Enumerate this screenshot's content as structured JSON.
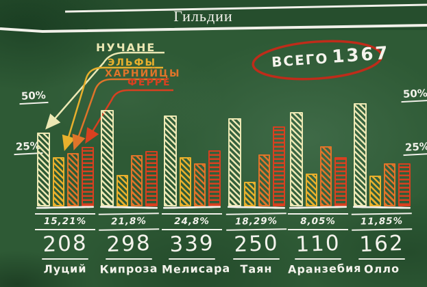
{
  "title": "Гильдии",
  "total": {
    "label": "ВСЕГО",
    "value": "1367"
  },
  "axis": {
    "left": [
      {
        "label": "50%"
      },
      {
        "label": "25%"
      }
    ],
    "right": [
      {
        "label": "50%"
      },
      {
        "label": "25%"
      }
    ]
  },
  "legend": [
    {
      "label": "НУЧАНЕ",
      "color": "#ece8b4"
    },
    {
      "label": "ЭЛЬФЫ",
      "color": "#e9b02d"
    },
    {
      "label": "ХАРНИЙЦЫ",
      "color": "#e0742a"
    },
    {
      "label": "ФЕРРЕ",
      "color": "#d84020"
    }
  ],
  "colors": {
    "board_green": "#2e5a35",
    "chalk_white": "#f2f1ea",
    "circle_red": "#bf2c1a"
  },
  "chart_data": {
    "type": "bar",
    "grouped": true,
    "title": "Гильдии",
    "categories": [
      "Луций",
      "Кипроза",
      "Мелисара",
      "Таян",
      "Аранзебия",
      "Олло"
    ],
    "share_percent": [
      "15,21%",
      "21,8%",
      "24,8%",
      "18,29%",
      "8,05%",
      "11,85%"
    ],
    "totals": [
      "208",
      "298",
      "339",
      "250",
      "110",
      "162"
    ],
    "grand_total": 1367,
    "series": [
      {
        "name": "Нучане",
        "key": "nuchane",
        "color": "#ece8b4",
        "values": [
          34.5,
          45.5,
          43.0,
          41.5,
          44.5,
          49.0
        ]
      },
      {
        "name": "Эльфы",
        "key": "elfy",
        "color": "#e9b02d",
        "values": [
          22.5,
          14.0,
          22.5,
          10.5,
          14.5,
          13.5
        ]
      },
      {
        "name": "Харнийцы",
        "key": "kharniytsy",
        "color": "#e0742a",
        "values": [
          24.5,
          23.5,
          19.5,
          24.0,
          28.0,
          19.5
        ]
      },
      {
        "name": "Ферре",
        "key": "ferre",
        "color": "#d84020",
        "values": [
          27.5,
          25.5,
          26.0,
          37.5,
          22.5,
          19.5
        ]
      }
    ],
    "ylabel": "%",
    "ylim": [
      0,
      55
    ],
    "yticks": [
      "25%",
      "50%"
    ],
    "legend_position": "top-left",
    "grid": false
  }
}
